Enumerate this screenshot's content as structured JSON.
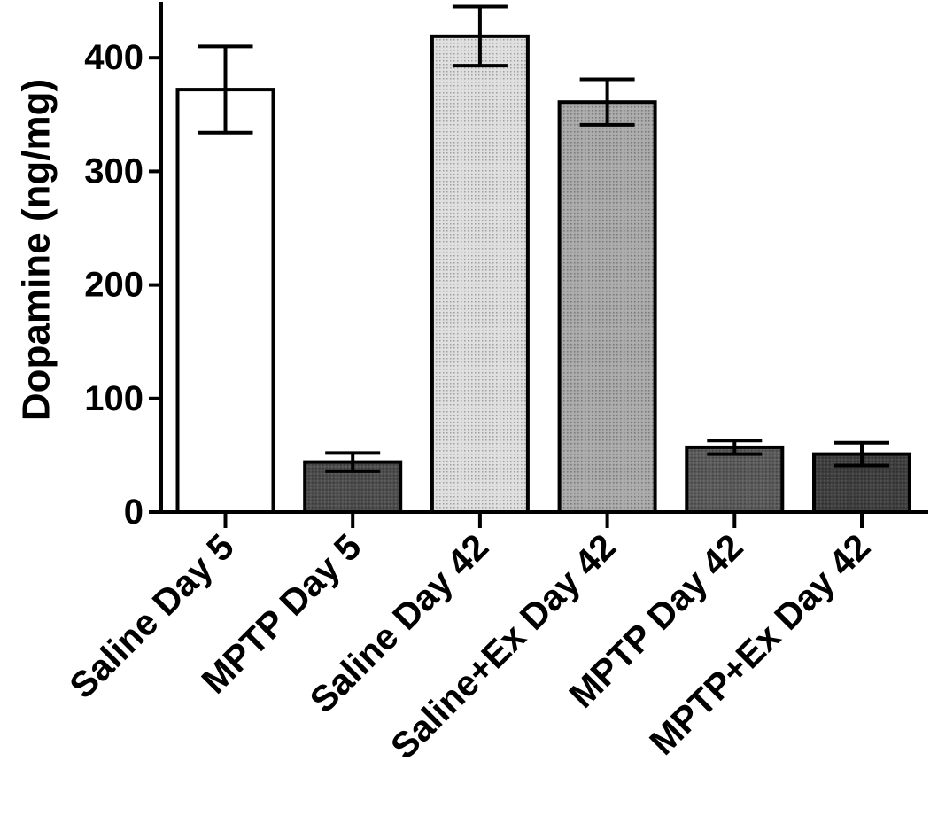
{
  "chart_data": {
    "type": "bar",
    "title": "",
    "xlabel": "",
    "ylabel": "Dopamine (ng/mg)",
    "ylim": [
      0,
      450
    ],
    "yticks": [
      "0",
      "100",
      "200",
      "300",
      "400"
    ],
    "ytick_values": [
      0,
      100,
      200,
      300,
      400
    ],
    "grid": false,
    "legend": "none",
    "categories": [
      "Saline Day 5",
      "MPTP Day 5",
      "Saline Day 42",
      "Saline+Ex Day 42",
      "MPTP Day 42",
      "MPTP+Ex Day 42"
    ],
    "values": [
      372,
      44,
      419,
      361,
      57,
      51
    ],
    "errors": [
      38,
      8,
      26,
      20,
      6,
      10
    ],
    "bar_fills": [
      "#ffffff",
      "#4d4d4d",
      "#dedede",
      "#a9a9a9",
      "#5a5a5a",
      "#3f3f3f"
    ],
    "bar_textures": [
      "none",
      "dots",
      "dots",
      "dots",
      "dots",
      "dots"
    ]
  }
}
